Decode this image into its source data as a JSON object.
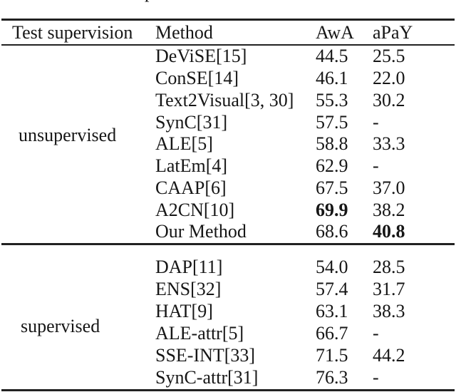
{
  "page": {
    "background": "#ffffff",
    "text_color": "#161616",
    "rule_color": "#212121"
  },
  "caption_fragment": {
    "glyph": "p"
  },
  "table": {
    "headers": {
      "supervision": "Test supervision",
      "method": "Method",
      "awa": "AwA",
      "apay": "aPaY"
    },
    "groups": [
      {
        "label": "unsupervised",
        "rows": [
          {
            "method": "DeViSE[15]",
            "awa": "44.5",
            "apay": "25.5"
          },
          {
            "method": "ConSE[14]",
            "awa": "46.1",
            "apay": "22.0"
          },
          {
            "method": "Text2Visual[3, 30]",
            "awa": "55.3",
            "apay": "30.2"
          },
          {
            "method": "SynC[31]",
            "awa": "57.5",
            "apay": "-"
          },
          {
            "method": "ALE[5]",
            "awa": "58.8",
            "apay": "33.3"
          },
          {
            "method": "LatEm[4]",
            "awa": "62.9",
            "apay": "-"
          },
          {
            "method": "CAAP[6]",
            "awa": "67.5",
            "apay": "37.0"
          },
          {
            "method": "A2CN[10]",
            "awa": "69.9",
            "apay": "38.2",
            "awa_bold": true
          },
          {
            "method": "Our Method",
            "awa": "68.6",
            "apay": "40.8",
            "apay_bold": true
          }
        ]
      },
      {
        "label": "supervised",
        "rows": [
          {
            "method": "DAP[11]",
            "awa": "54.0",
            "apay": "28.5"
          },
          {
            "method": "ENS[32]",
            "awa": "57.4",
            "apay": "31.7"
          },
          {
            "method": "HAT[9]",
            "awa": "63.1",
            "apay": "38.3"
          },
          {
            "method": "ALE-attr[5]",
            "awa": "66.7",
            "apay": "-"
          },
          {
            "method": "SSE-INT[33]",
            "awa": "71.5",
            "apay": "44.2"
          },
          {
            "method": "SynC-attr[31]",
            "awa": "76.3",
            "apay": "-"
          }
        ]
      }
    ]
  }
}
